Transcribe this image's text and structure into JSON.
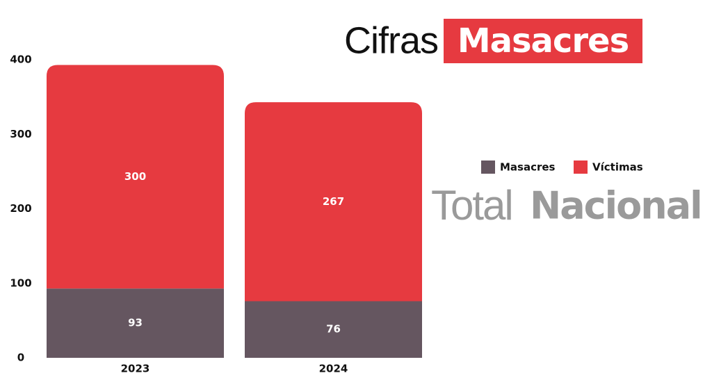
{
  "chart_data": {
    "type": "stacked_bar",
    "title": "Cifras",
    "title_highlight": "Masacres",
    "subtitle": "Total",
    "subtitle_bold": "Nacional",
    "categories": [
      "2023",
      "2024"
    ],
    "series": [
      {
        "name": "Masacres",
        "color": "#655660",
        "values": [
          93,
          76
        ]
      },
      {
        "name": "Víctimas",
        "color": "#e63a40",
        "values": [
          300,
          267
        ]
      }
    ],
    "ylim": [
      0,
      400
    ],
    "yticks": [
      0,
      100,
      200,
      300,
      400
    ],
    "grid": false,
    "title_highlight_color": "#e63a40",
    "subtitle_color": "#9a9a9a"
  }
}
